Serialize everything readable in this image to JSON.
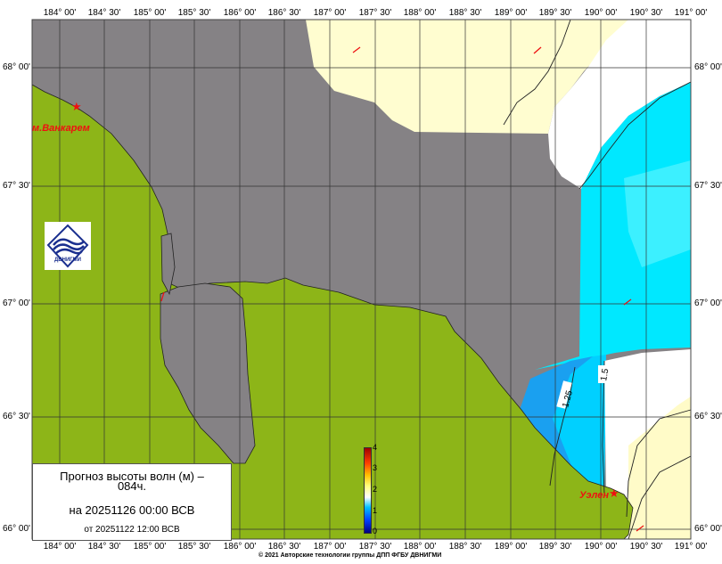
{
  "map": {
    "title_line1": "Прогноз высоты волн (м) –",
    "title_line1b": "084ч.",
    "valid_time": "на 20251126 00:00 ВСВ",
    "issued": "от 20251122 12:00 ВСВ",
    "copyright": "© 2021 Авторские технологии группы ДПП ФГБУ ДВНИГМИ",
    "logo_text": "ДВНИГМИ",
    "longitude_labels": [
      "184° 00'",
      "184° 30'",
      "185° 00'",
      "185° 30'",
      "186° 00'",
      "186° 30'",
      "187° 00'",
      "187° 30'",
      "188° 00'",
      "188° 30'",
      "189° 00'",
      "189° 30'",
      "190° 00'",
      "190° 30'",
      "191° 00'"
    ],
    "latitude_labels": [
      "68° 00'",
      "67° 30'",
      "67° 00'",
      "66° 30'",
      "66° 00'"
    ],
    "places": [
      "м.Ванкарем",
      "Уэлен"
    ],
    "contour_labels": [
      "1.25",
      "1.5"
    ],
    "colorbar": {
      "min": 0,
      "max": 4,
      "ticks": [
        "0",
        "1",
        "2",
        "3",
        "4"
      ],
      "colors": [
        "#000080",
        "#0040ff",
        "#00c0ff",
        "#ffffff",
        "#ffff80",
        "#ffc000",
        "#ff4000",
        "#a00000"
      ]
    },
    "colors": {
      "land": "#8db518",
      "no_data": "#858285",
      "low_wave": "#00e8ff",
      "calm": "#fffdd0",
      "marker": "#ee1111"
    }
  }
}
